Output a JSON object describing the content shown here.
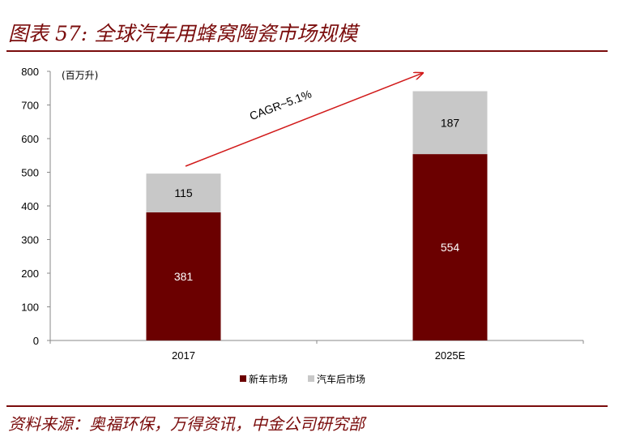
{
  "header": {
    "title": "图表 57:  全球汽车用蜂窝陶瓷市场规模"
  },
  "footer": {
    "source": "资料来源：奥福环保，万得资讯，中金公司研究部"
  },
  "chart_data": {
    "type": "bar",
    "stacked": true,
    "unit_label": "(百万升)",
    "categories": [
      "2017",
      "2025E"
    ],
    "series": [
      {
        "name": "新车市场",
        "values": [
          381,
          554
        ],
        "color": "#6b0000",
        "label_color": "#ffffff"
      },
      {
        "name": "汽车后市场",
        "values": [
          115,
          187
        ],
        "color": "#c8c8c8",
        "label_color": "#000000"
      }
    ],
    "ylim": [
      0,
      800
    ],
    "yticks": [
      "0",
      "100",
      "200",
      "300",
      "400",
      "500",
      "600",
      "700",
      "800"
    ],
    "grid": false,
    "legend": "bottom-center",
    "annotation": {
      "text": "CAGR~5.1%",
      "arrow_color": "#d11a1a"
    }
  }
}
